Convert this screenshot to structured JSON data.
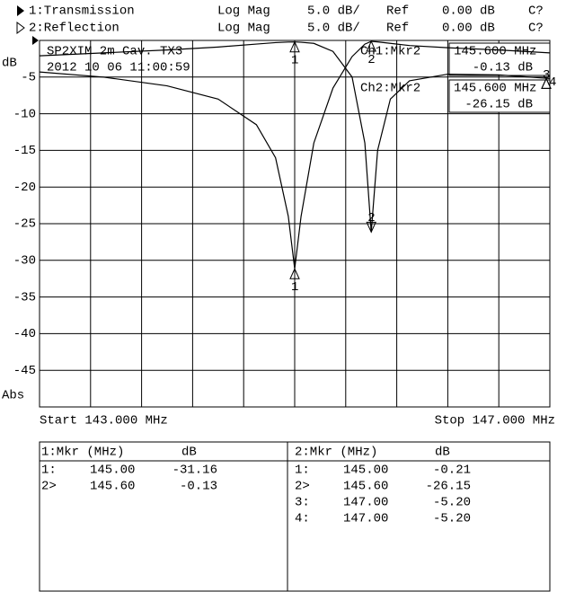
{
  "chart_data": {
    "type": "line",
    "header_rows": [
      [
        "1:Transmission",
        "Log Mag",
        "5.0 dB/",
        "Ref",
        "0.00 dB",
        "C?"
      ],
      [
        "2:Reflection",
        "Log Mag",
        "5.0 dB/",
        "Ref",
        "0.00 dB",
        "C?"
      ]
    ],
    "annotations": [
      "SP2XIM 2m Cav. TX3",
      "2012 10 06 11:00:59"
    ],
    "active_markers": [
      {
        "label": "Ch1:Mkr2",
        "freq": "145.600 MHz",
        "value": "-0.13 dB"
      },
      {
        "label": "Ch2:Mkr2",
        "freq": "145.600 MHz",
        "value": "-26.15 dB"
      }
    ],
    "ylabel": "dB",
    "scale_label": "Abs",
    "start_label": "Start 143.000 MHz",
    "stop_label": "Stop 147.000 MHz",
    "xlim": [
      143,
      147
    ],
    "ylim": [
      -50,
      0
    ],
    "yticks": [
      -5,
      -10,
      -15,
      -20,
      -25,
      -30,
      -35,
      -40,
      -45
    ],
    "grid": true,
    "x": [
      143,
      143.5,
      144,
      144.4,
      144.7,
      144.85,
      144.95,
      145.0,
      145.05,
      145.15,
      145.3,
      145.45,
      145.55,
      145.6,
      145.65,
      145.75,
      145.9,
      146.2,
      146.6,
      147
    ],
    "series": [
      {
        "name": "1:Transmission",
        "color": "#000000",
        "values": [
          -4.3,
          -5.0,
          -6.2,
          -8.0,
          -11.5,
          -16,
          -24,
          -31.16,
          -24,
          -14,
          -6.5,
          -2.2,
          -0.5,
          -0.13,
          -0.2,
          -0.4,
          -0.7,
          -1.0,
          -1.3,
          -1.7
        ],
        "markers": [
          {
            "id": "1",
            "x": 145.0,
            "value": -31.16
          },
          {
            "id": "2",
            "x": 145.6,
            "value": -0.13
          }
        ]
      },
      {
        "name": "2:Reflection",
        "color": "#000000",
        "values": [
          -2.1,
          -1.7,
          -1.3,
          -0.9,
          -0.5,
          -0.3,
          -0.22,
          -0.21,
          -0.25,
          -0.4,
          -1.5,
          -5,
          -14,
          -26.15,
          -15,
          -8,
          -5.5,
          -4.6,
          -4.7,
          -5.2
        ],
        "markers": [
          {
            "id": "1",
            "x": 145.0,
            "value": -0.21
          },
          {
            "id": "2",
            "x": 145.6,
            "value": -26.15
          },
          {
            "id": "3",
            "x": 147.0,
            "value": -5.2
          },
          {
            "id": "4",
            "x": 147.0,
            "value": -5.2
          }
        ]
      }
    ]
  },
  "marker_tables": [
    {
      "header": [
        "1:Mkr (MHz)",
        "dB"
      ],
      "rows": [
        [
          "1:",
          "145.00",
          "-31.16"
        ],
        [
          "2>",
          "145.60",
          "-0.13"
        ]
      ]
    },
    {
      "header": [
        "2:Mkr (MHz)",
        "dB"
      ],
      "rows": [
        [
          "1:",
          "145.00",
          "-0.21"
        ],
        [
          "2>",
          "145.60",
          "-26.15"
        ],
        [
          "3:",
          "147.00",
          "-5.20"
        ],
        [
          "4:",
          "147.00",
          "-5.20"
        ]
      ]
    }
  ]
}
